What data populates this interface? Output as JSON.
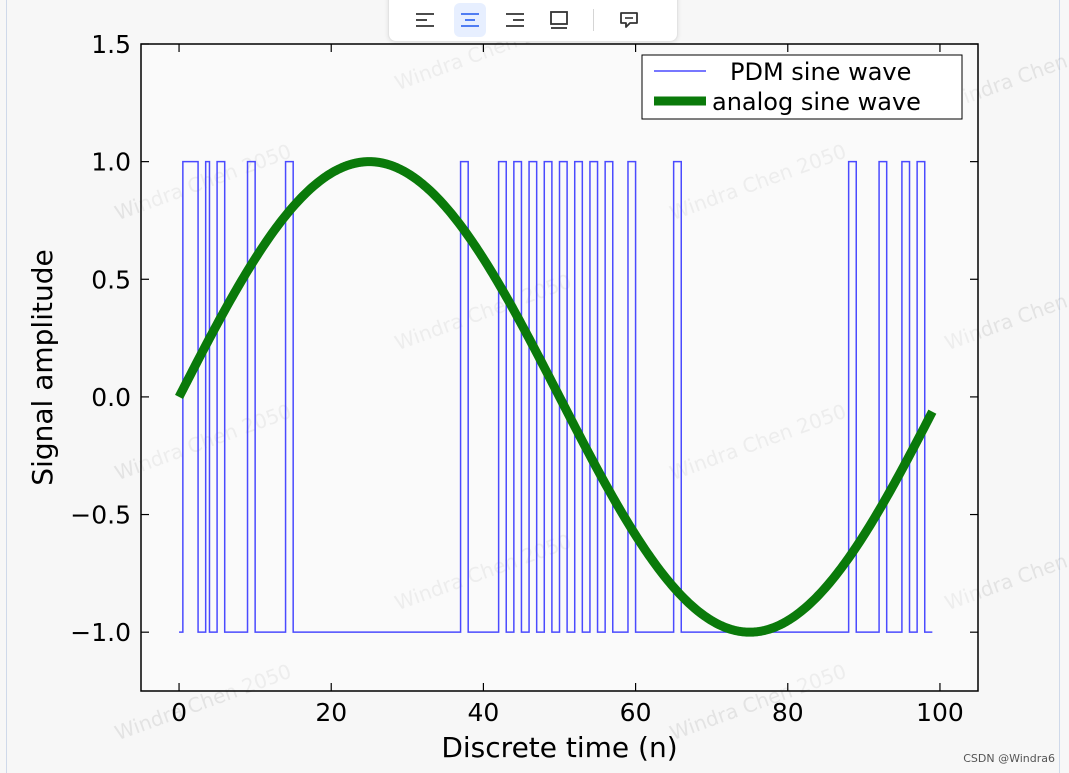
{
  "toolbar": {
    "buttons": [
      {
        "icon": "align-left-icon",
        "active": false
      },
      {
        "icon": "align-center-icon",
        "active": true
      },
      {
        "icon": "align-right-icon",
        "active": false
      },
      {
        "icon": "image-frame-icon",
        "active": false
      },
      {
        "icon": "comment-icon",
        "active": false
      }
    ]
  },
  "watermark": {
    "text": "Windra Chen 2050"
  },
  "footer": {
    "credit": "CSDN @Windra6"
  },
  "colors": {
    "pdm": "#4a4aff",
    "analog": "#0a7a0a",
    "axes": "#000000"
  },
  "chart_data": {
    "type": "line",
    "title": "",
    "xlabel": "Discrete time (n)",
    "ylabel": "Signal amplitude",
    "xlim": [
      -5,
      105
    ],
    "ylim": [
      -1.25,
      1.5
    ],
    "xticks": [
      0,
      20,
      40,
      60,
      80,
      100
    ],
    "yticks": [
      1.5,
      1.0,
      0.5,
      0.0,
      -0.5,
      -1.0
    ],
    "ytick_labels": [
      "1.5",
      "1.0",
      "0.5",
      "0.0",
      "−0.5",
      "−1.0"
    ],
    "legend_position": "top-right",
    "series": [
      {
        "name": "PDM sine wave",
        "style": "step",
        "edges": [
          0,
          0.5,
          2.5,
          3.5,
          4,
          5,
          6,
          9,
          10,
          14,
          15,
          37,
          38,
          42,
          43,
          44,
          45,
          46,
          47,
          48,
          49,
          50,
          51,
          52,
          53,
          54,
          55,
          56,
          57,
          59,
          60,
          65,
          66,
          88,
          89,
          92,
          93,
          95,
          96,
          97,
          98,
          99
        ],
        "levels": [
          -1,
          1,
          -1,
          1,
          -1,
          1,
          -1,
          1,
          -1,
          1,
          -1,
          1,
          -1,
          1,
          -1,
          1,
          -1,
          1,
          -1,
          1,
          -1,
          1,
          -1,
          1,
          -1,
          1,
          -1,
          1,
          -1,
          1,
          -1,
          1,
          -1,
          1,
          -1,
          1,
          -1,
          1,
          -1,
          1,
          -1
        ]
      },
      {
        "name": "analog sine wave",
        "style": "line",
        "function": "sin(2*pi*n/100)",
        "x_range": [
          0,
          99
        ]
      }
    ]
  }
}
